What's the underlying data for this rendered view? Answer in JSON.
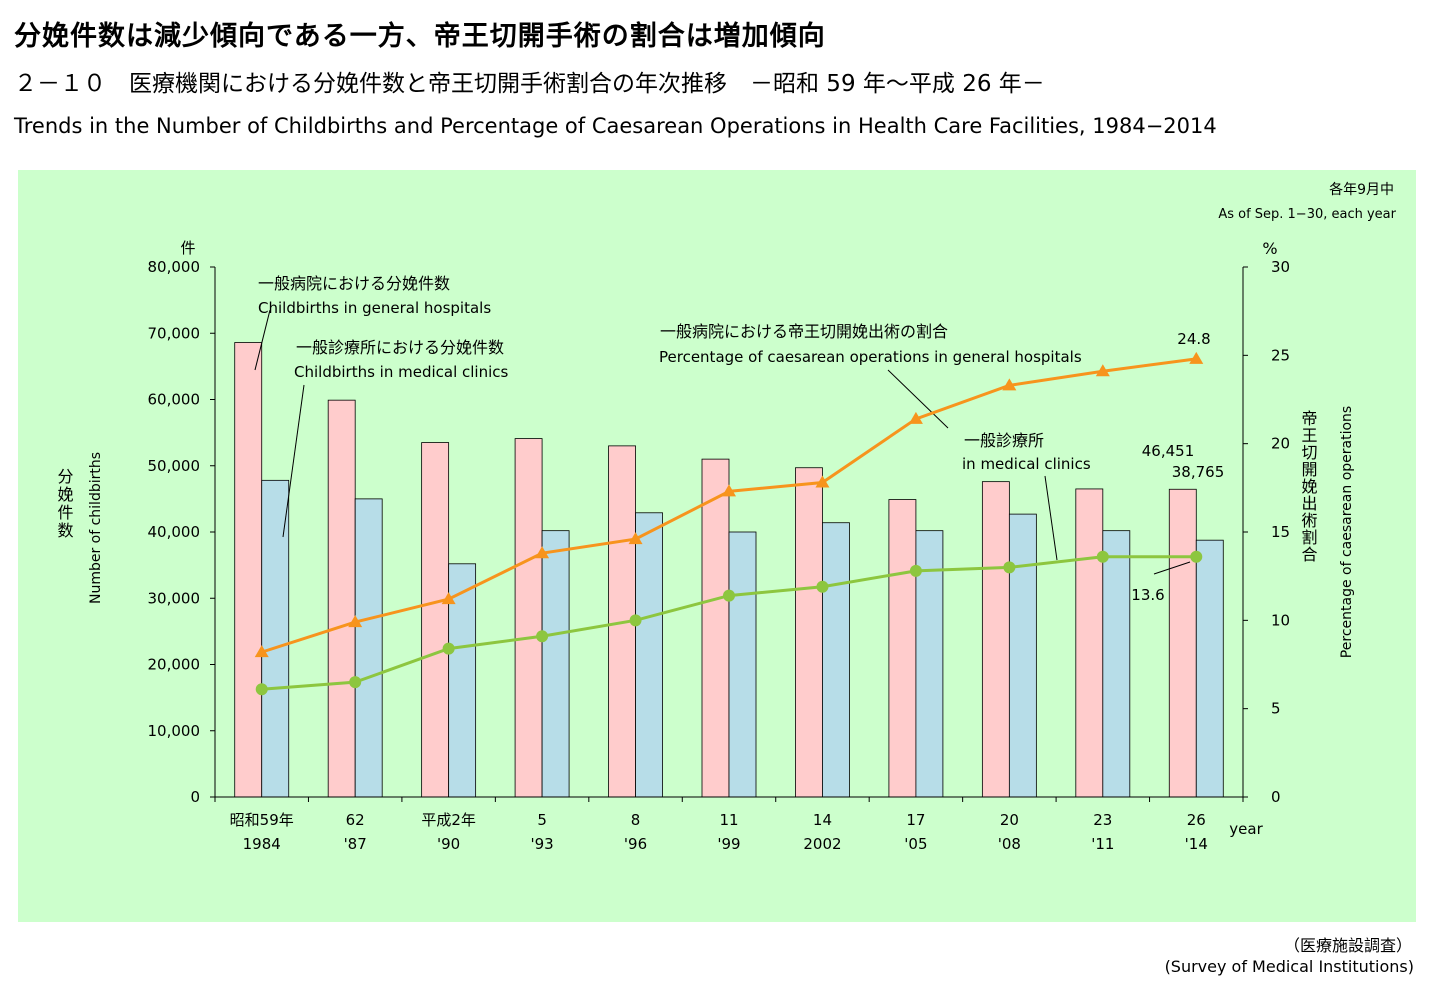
{
  "header": {
    "title_jp": "分娩件数は減少傾向である一方、帝王切開手術の割合は増加傾向",
    "subtitle_jp": "２－１０　医療機関における分娩件数と帝王切開手術割合の年次推移　－昭和 59 年～平成 26 年－",
    "subtitle_en": "Trends in the Number of Childbirths and Percentage of Caesarean Operations in Health Care Facilities, 1984−2014"
  },
  "source": {
    "jp": "（医療施設調査）",
    "en": "(Survey of Medical Institutions)"
  },
  "chart_data": {
    "type": "bar",
    "note_jp": "各年9月中",
    "note_en": "As of Sep. 1−30, each year",
    "categories_jp": [
      "昭和59年",
      "62",
      "平成2年",
      "5",
      "8",
      "11",
      "14",
      "17",
      "20",
      "23",
      "26"
    ],
    "categories_en": [
      "1984",
      "'87",
      "'90",
      "'93",
      "'96",
      "'99",
      "2002",
      "'05",
      "'08",
      "'11",
      "'14"
    ],
    "x_axis_unit": "year",
    "y_left": {
      "unit": "件",
      "label_jp": "分娩件数",
      "label_en": "Number of childbirths",
      "range": [
        0,
        80000
      ],
      "ticks": [
        "0",
        "10,000",
        "20,000",
        "30,000",
        "40,000",
        "50,000",
        "60,000",
        "70,000",
        "80,000"
      ]
    },
    "y_right": {
      "unit": "%",
      "label_jp": "帝王切開娩出術割合",
      "label_en": "Percentage of caesarean operations",
      "range": [
        0,
        30
      ],
      "ticks": [
        "0",
        "5",
        "10",
        "15",
        "20",
        "25",
        "30"
      ]
    },
    "series": [
      {
        "kind": "bar",
        "name_jp": "一般病院における分娩件数",
        "name_en": "Childbirths in general hospitals",
        "color": "#ffcccc",
        "values": [
          68600,
          59900,
          53500,
          54100,
          53000,
          51000,
          49700,
          44900,
          47600,
          46500,
          46451
        ]
      },
      {
        "kind": "bar",
        "name_jp": "一般診療所における分娩件数",
        "name_en": "Childbirths in medical clinics",
        "color": "#b7dde8",
        "values": [
          47800,
          45000,
          35200,
          40200,
          42900,
          40000,
          41400,
          40200,
          42700,
          40200,
          38765
        ]
      },
      {
        "kind": "line",
        "axis": "right",
        "name_jp": "一般病院における帝王切開娩出術の割合",
        "name_en": "Percentage of caesarean operations in general hospitals",
        "color": "#f7941d",
        "marker": "triangle",
        "values": [
          8.2,
          9.9,
          11.2,
          13.8,
          14.6,
          17.3,
          17.8,
          21.4,
          23.3,
          24.1,
          24.8
        ]
      },
      {
        "kind": "line",
        "axis": "right",
        "name_jp": "一般診療所",
        "name_en": "in medical clinics",
        "color": "#8dc63f",
        "marker": "circle",
        "values": [
          6.1,
          6.5,
          8.4,
          9.1,
          10.0,
          11.4,
          11.9,
          12.8,
          13.0,
          13.6,
          13.6
        ]
      }
    ],
    "data_labels": {
      "hospital_births_last": "46,451",
      "clinic_births_last": "38,765",
      "hospital_pct_last": "24.8",
      "clinic_pct_last": "13.6"
    }
  }
}
